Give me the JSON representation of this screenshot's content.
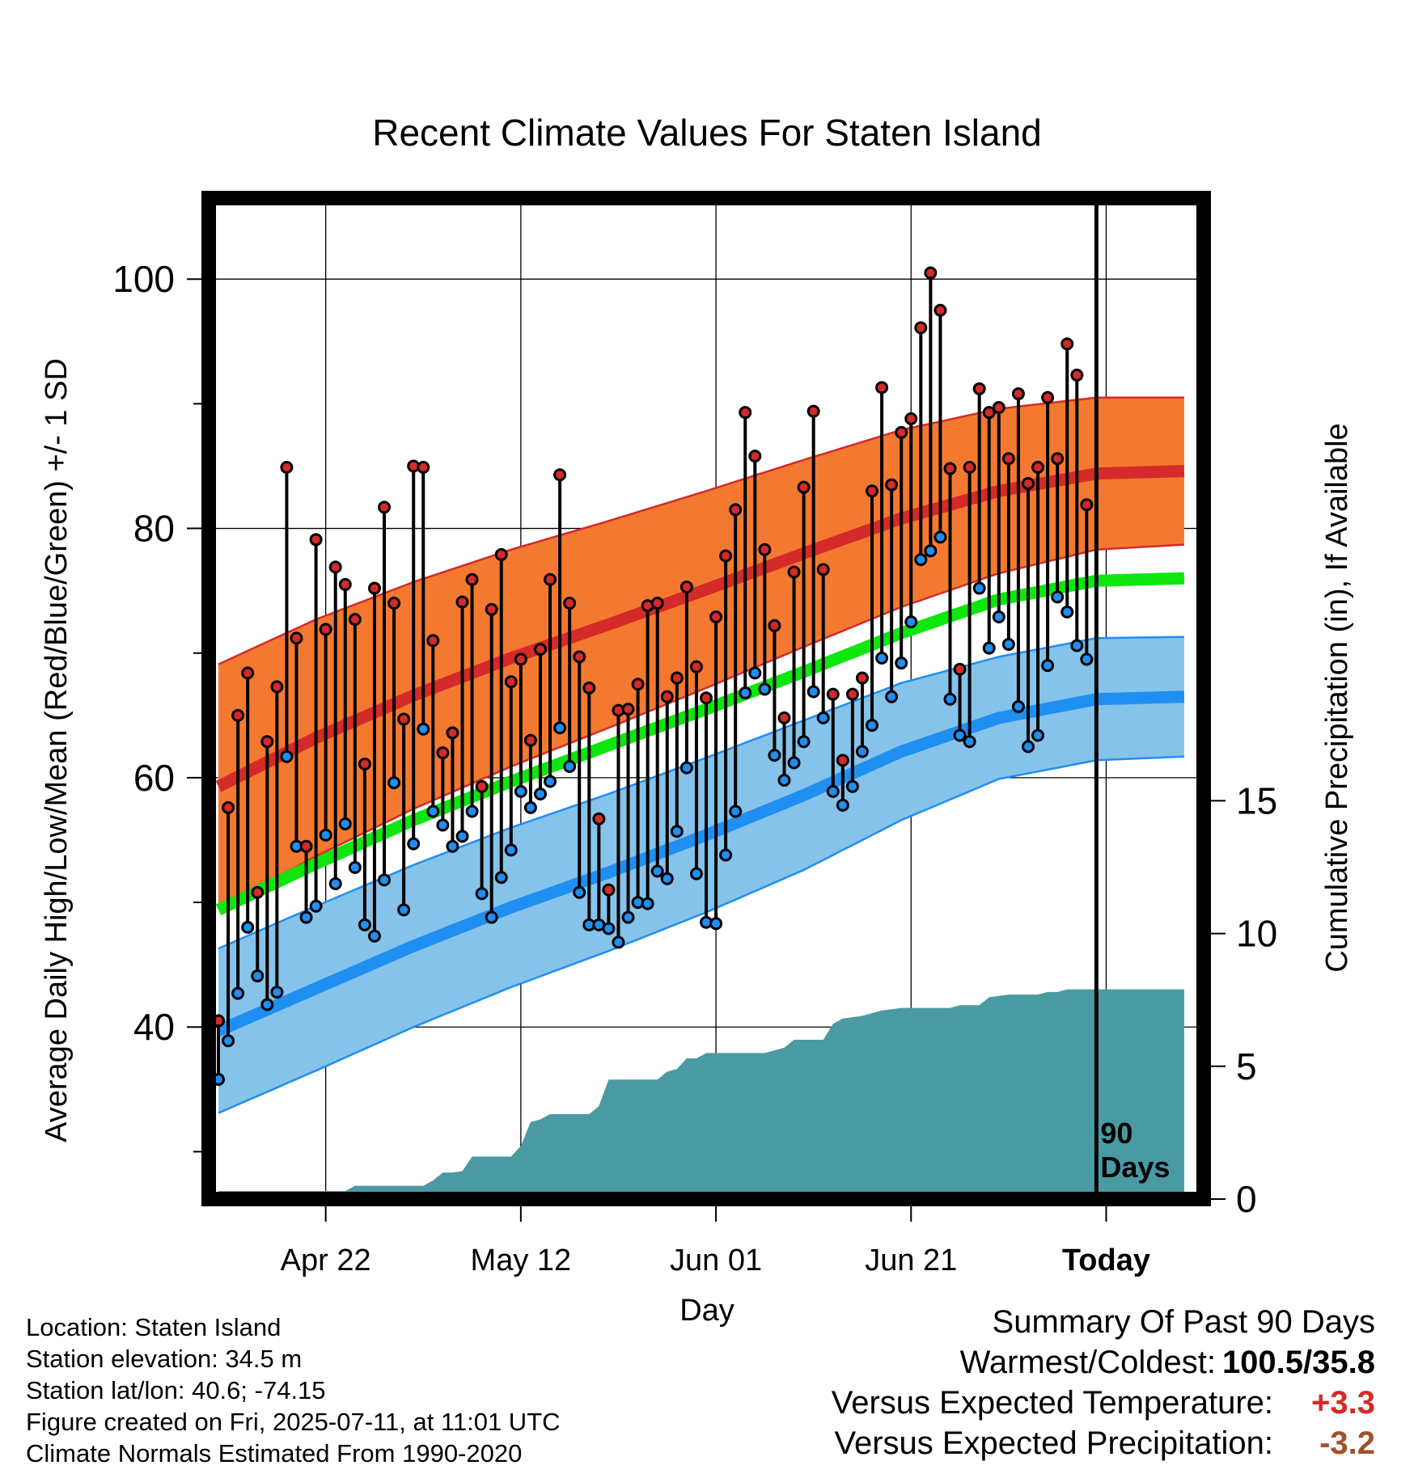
{
  "colors": {
    "high_band": "#f47930",
    "high_band_edge": "#d42a2a",
    "high_mean": "#d42a2a",
    "mean": "#0ee60e",
    "low_band": "#86c3ea",
    "low_band_edge": "#1f8ff2",
    "low_mean": "#1f8ff2",
    "precip": "#4a9aa4",
    "high_dot": "#d42a2a",
    "low_dot": "#1f8ff2",
    "temp_anomaly": "#d42a2a",
    "precip_anomaly": "#a0522d"
  },
  "chart_data": {
    "type": "line",
    "title": "Recent Climate Values For Staten Island",
    "xlabel": "Day",
    "ylabel": "Average Daily High/Low/Mean (Red/Blue/Green) +/- 1 SD",
    "y2label": "Cumulative Precipitation (in), If Available",
    "x_tick_labels": [
      "Apr 22",
      "May 12",
      "Jun 01",
      "Jun 21",
      "Today"
    ],
    "x_tick_days": [
      11,
      31,
      51,
      71,
      91
    ],
    "x_range_days": [
      0,
      100
    ],
    "yticks": [
      40,
      60,
      80,
      100
    ],
    "ylim": [
      26.2,
      106.5
    ],
    "y2ticks": [
      0,
      5,
      10,
      15
    ],
    "y2lim": [
      0,
      37.7
    ],
    "grid": true,
    "today_marker_label": "90\nDays",
    "normals": {
      "days": [
        0,
        10,
        20,
        30,
        40,
        50,
        60,
        70,
        80,
        90,
        99
      ],
      "high_mean": [
        59.3,
        63.2,
        66.6,
        69.6,
        72.3,
        75.1,
        78.0,
        80.8,
        83.0,
        84.4,
        84.6
      ],
      "high_sd": [
        9.8,
        9.5,
        9.1,
        8.7,
        8.3,
        7.9,
        7.5,
        7.1,
        6.6,
        6.1,
        5.9
      ],
      "mean": [
        49.4,
        53.1,
        56.6,
        59.7,
        62.6,
        65.5,
        68.5,
        71.6,
        74.3,
        75.8,
        76.0
      ],
      "low_mean": [
        39.7,
        43.1,
        46.5,
        49.6,
        52.4,
        55.4,
        58.6,
        62.1,
        64.8,
        66.3,
        66.5
      ],
      "low_sd": [
        6.6,
        6.6,
        6.5,
        6.4,
        6.3,
        6.2,
        6.0,
        5.5,
        4.9,
        4.9,
        4.8
      ]
    },
    "series": [
      {
        "name": "High",
        "values": [
          40.5,
          57.6,
          65.0,
          68.4,
          50.8,
          62.9,
          67.3,
          84.9,
          71.2,
          54.5,
          79.1,
          71.9,
          76.9,
          75.5,
          72.7,
          61.1,
          75.2,
          81.7,
          74.0,
          64.7,
          85.0,
          84.9,
          71.0,
          62.0,
          63.6,
          74.1,
          75.9,
          59.3,
          73.5,
          77.9,
          67.7,
          69.5,
          63.0,
          70.3,
          75.9,
          84.3,
          74.0,
          69.7,
          67.2,
          56.7,
          51.0,
          65.4,
          65.5,
          67.5,
          73.8,
          74.0,
          66.5,
          68.0,
          75.3,
          68.9,
          66.4,
          72.9,
          77.8,
          81.5,
          89.3,
          85.8,
          78.3,
          72.2,
          64.8,
          76.5,
          83.3,
          89.4,
          76.7,
          66.7,
          61.4,
          66.7,
          68.0,
          83.0,
          91.3,
          83.5,
          87.7,
          88.8,
          96.1,
          100.5,
          97.5,
          84.8,
          68.7,
          84.9,
          91.2,
          89.3,
          89.7,
          85.6,
          90.8,
          83.6,
          84.9,
          90.5,
          85.6,
          94.8,
          92.3,
          81.9
        ]
      },
      {
        "name": "Low",
        "values": [
          35.8,
          38.9,
          42.7,
          48.0,
          44.1,
          41.8,
          42.8,
          61.7,
          54.5,
          48.8,
          49.7,
          55.4,
          51.5,
          56.3,
          52.8,
          48.2,
          47.3,
          51.8,
          59.6,
          49.4,
          54.7,
          63.9,
          57.3,
          56.2,
          54.5,
          55.3,
          57.3,
          50.7,
          48.8,
          52.0,
          54.2,
          58.9,
          57.6,
          58.7,
          59.7,
          64.0,
          60.9,
          50.8,
          48.2,
          48.2,
          47.9,
          46.8,
          48.8,
          50.0,
          49.9,
          52.5,
          51.9,
          55.7,
          60.8,
          52.3,
          48.4,
          48.3,
          53.8,
          57.3,
          66.8,
          68.4,
          67.1,
          61.8,
          59.8,
          61.2,
          62.9,
          66.9,
          64.8,
          58.9,
          57.8,
          59.3,
          62.1,
          64.2,
          69.6,
          66.5,
          69.2,
          72.5,
          77.5,
          78.2,
          79.3,
          66.3,
          63.4,
          62.9,
          75.2,
          70.4,
          72.9,
          70.7,
          65.7,
          62.5,
          63.4,
          69.0,
          74.5,
          73.3,
          70.6,
          69.5
        ]
      },
      {
        "name": "Cumulative Precipitation",
        "values": [
          [
            0,
            0.3
          ],
          [
            13,
            0.3
          ],
          [
            14,
            0.5
          ],
          [
            21,
            0.5
          ],
          [
            22,
            0.7
          ],
          [
            23,
            1.0
          ],
          [
            24,
            1.0
          ],
          [
            25,
            1.05
          ],
          [
            26,
            1.6
          ],
          [
            30,
            1.6
          ],
          [
            31,
            2.0
          ],
          [
            32,
            2.9
          ],
          [
            33,
            3.0
          ],
          [
            34,
            3.2
          ],
          [
            38,
            3.2
          ],
          [
            39,
            3.5
          ],
          [
            40,
            4.5
          ],
          [
            45,
            4.5
          ],
          [
            46,
            4.8
          ],
          [
            47,
            4.9
          ],
          [
            48,
            5.3
          ],
          [
            49,
            5.3
          ],
          [
            50,
            5.5
          ],
          [
            56,
            5.5
          ],
          [
            57,
            5.6
          ],
          [
            58,
            5.7
          ],
          [
            59,
            6.0
          ],
          [
            62,
            6.0
          ],
          [
            63,
            6.6
          ],
          [
            64,
            6.8
          ],
          [
            66,
            6.9
          ],
          [
            67,
            7.0
          ],
          [
            68,
            7.1
          ],
          [
            70,
            7.2
          ],
          [
            75,
            7.2
          ],
          [
            76,
            7.3
          ],
          [
            78,
            7.3
          ],
          [
            79,
            7.6
          ],
          [
            81,
            7.7
          ],
          [
            84,
            7.7
          ],
          [
            85,
            7.8
          ],
          [
            86,
            7.8
          ],
          [
            87,
            7.9
          ],
          [
            99,
            7.9
          ]
        ]
      }
    ]
  },
  "info": {
    "location": "Location: Staten Island",
    "elevation": "Station elevation: 34.5 m",
    "latlon": "Station lat/lon: 40.6; -74.15",
    "created": "Figure created on Fri, 2025-07-11, at 11:01 UTC",
    "normals": "Climate Normals Estimated From 1990-2020"
  },
  "summary": {
    "title": "Summary Of Past 90 Days",
    "extremes_label": "Warmest/Coldest:",
    "extremes_value": "100.5/35.8",
    "temp_label": "Versus Expected Temperature:",
    "temp_value": "+3.3",
    "precip_label": "Versus Expected Precipitation:",
    "precip_value": "-3.2"
  }
}
